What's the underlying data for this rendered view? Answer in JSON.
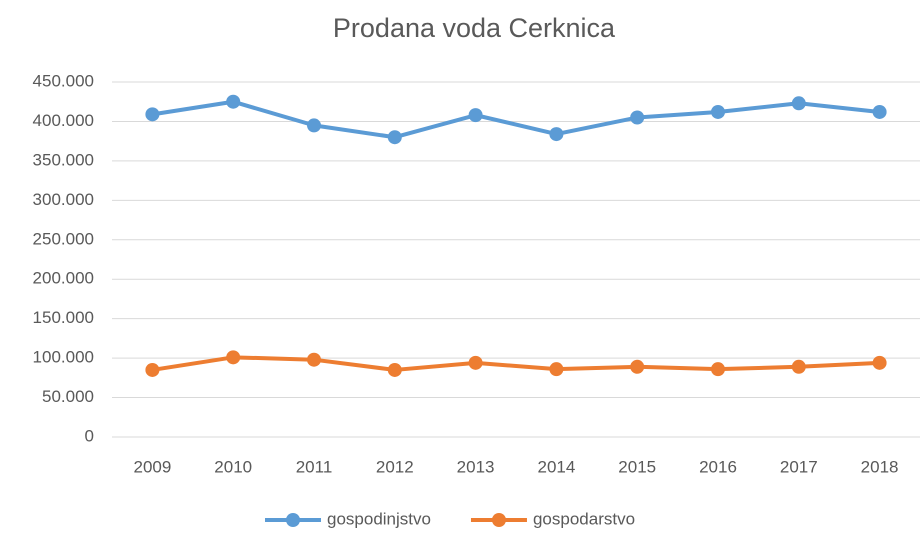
{
  "chart_data": {
    "type": "line",
    "title": "Prodana voda Cerknica",
    "categories": [
      "2009",
      "2010",
      "2011",
      "2012",
      "2013",
      "2014",
      "2015",
      "2016",
      "2017",
      "2018"
    ],
    "series": [
      {
        "name": "gospodinjstvo",
        "color": "#5b9bd5",
        "values": [
          409000,
          425000,
          395000,
          380000,
          408000,
          384000,
          405000,
          412000,
          423000,
          412000
        ]
      },
      {
        "name": "gospodarstvo",
        "color": "#ed7d31",
        "values": [
          85000,
          101000,
          98000,
          85000,
          94000,
          86000,
          89000,
          86000,
          89000,
          94000
        ]
      }
    ],
    "ylim": [
      0,
      450000
    ],
    "yticks": [
      0,
      {
        "value": 50000,
        "label": "50.000"
      },
      {
        "value": 100000,
        "label": "100.000"
      },
      {
        "value": 150000,
        "label": "150.000"
      },
      {
        "value": 200000,
        "label": "200.000"
      },
      {
        "value": 250000,
        "label": "250.000"
      },
      {
        "value": 300000,
        "label": "300.000"
      },
      {
        "value": 350000,
        "label": "350.000"
      },
      {
        "value": 400000,
        "label": "400.000"
      },
      {
        "value": 450000,
        "label": "450.000"
      }
    ],
    "grid": true,
    "legend": "bottom"
  }
}
